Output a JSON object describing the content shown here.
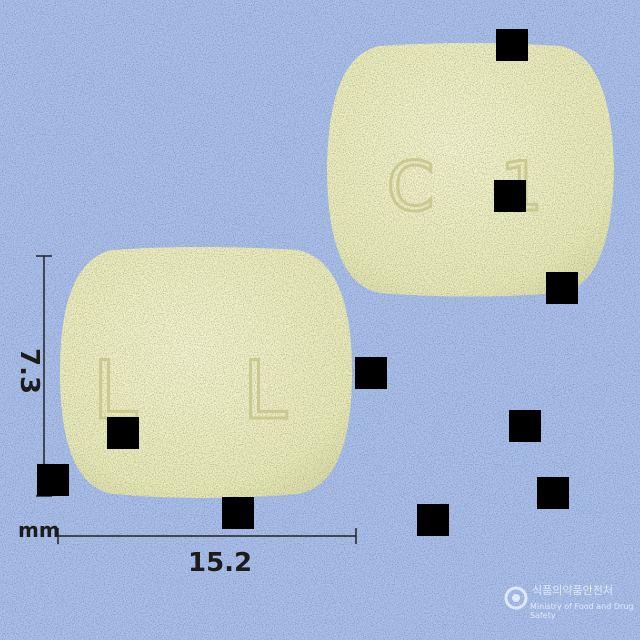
{
  "image": {
    "background_color": "#a9c0ee",
    "pill_color": "#eef0c0",
    "pills": [
      {
        "name": "front",
        "imprint": "L L"
      },
      {
        "name": "back",
        "imprint": "C 1"
      }
    ],
    "dimensions": {
      "width_value": "15.2",
      "height_value": "7.3",
      "unit": "mm"
    },
    "watermark": {
      "line1": "식품의약품안전처",
      "line2": "Ministry of Food and Drug Safety"
    }
  }
}
